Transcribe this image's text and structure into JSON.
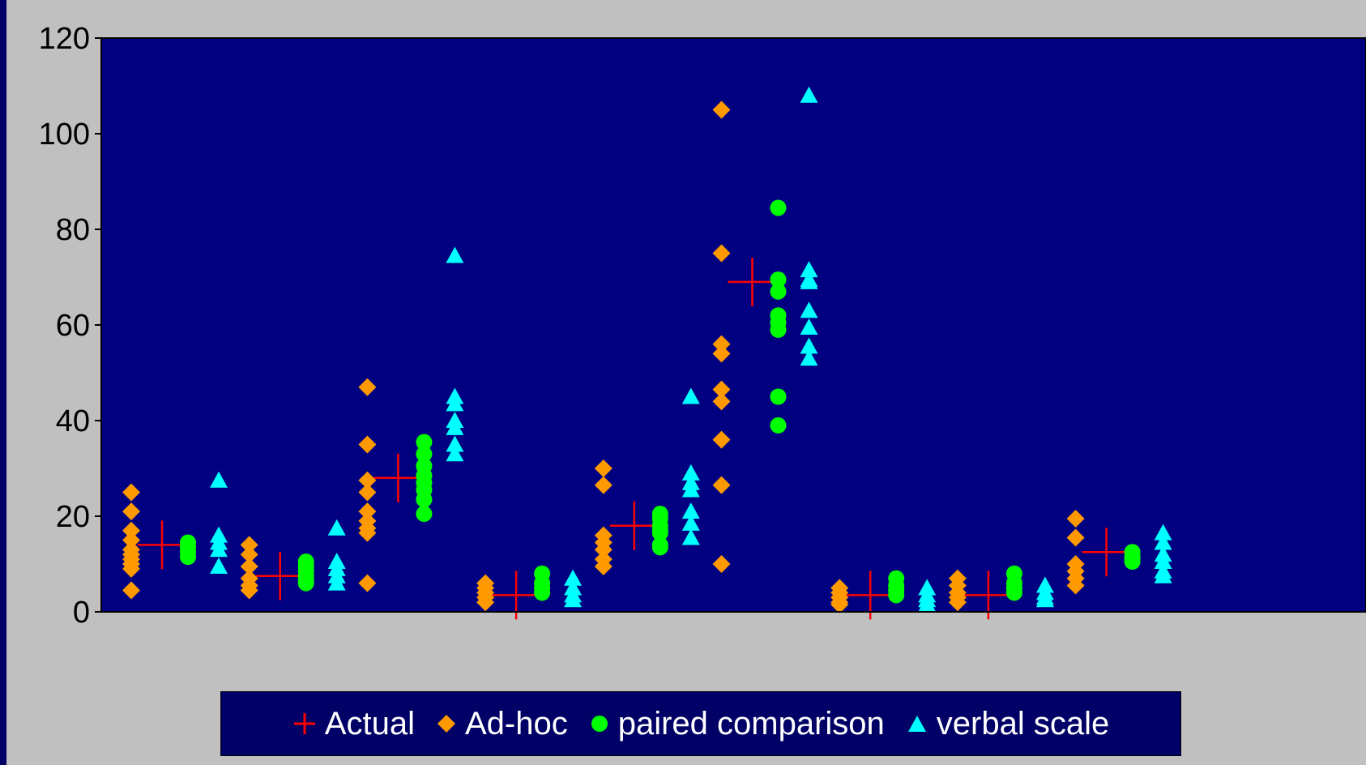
{
  "colors": {
    "page_background": "#000066",
    "chart_area": "#C0C0C0",
    "plot_background": "#000080",
    "legend_background": "#000066",
    "legend_text": "#FFFFFF",
    "axis_text": "#000000"
  },
  "chart_data": {
    "type": "scatter",
    "title": "",
    "xlabel": "",
    "ylabel": "",
    "ylim": [
      0,
      120
    ],
    "y_ticks": [
      0,
      20,
      40,
      60,
      80,
      100,
      120
    ],
    "y_tick_labels": [
      "0",
      "20",
      "40",
      "60",
      "80",
      "100",
      "120"
    ],
    "x_tick_labels": [],
    "grid": false,
    "legend_position": "bottom",
    "group_count": 10,
    "series": [
      {
        "name": "Actual",
        "marker": "cross",
        "color": "#FF0000",
        "points": [
          {
            "group": 1,
            "value": 14
          },
          {
            "group": 2,
            "value": 7.5
          },
          {
            "group": 3,
            "value": 28
          },
          {
            "group": 4,
            "value": 3.5
          },
          {
            "group": 5,
            "value": 18
          },
          {
            "group": 6,
            "value": 69
          },
          {
            "group": 7,
            "value": 3.5
          },
          {
            "group": 8,
            "value": 3.5
          },
          {
            "group": 9,
            "value": 12.5
          }
        ]
      },
      {
        "name": "Ad-hoc",
        "marker": "diamond",
        "color": "#FF9900",
        "points": [
          {
            "group": 1,
            "values": [
              25,
              21,
              17,
              15,
              13,
              12,
              11,
              10,
              9,
              4.5
            ]
          },
          {
            "group": 2,
            "values": [
              14,
              12,
              9.5,
              7,
              5.5,
              4.5
            ]
          },
          {
            "group": 3,
            "values": [
              47,
              35,
              27.5,
              25,
              21,
              19,
              17.5,
              16.5,
              6
            ]
          },
          {
            "group": 4,
            "values": [
              6,
              5,
              4,
              3,
              2
            ]
          },
          {
            "group": 5,
            "values": [
              30,
              26.5,
              16,
              14.5,
              13,
              11,
              9.5
            ]
          },
          {
            "group": 6,
            "values": [
              105,
              75,
              56,
              54,
              46.5,
              44,
              36,
              26.5,
              10
            ]
          },
          {
            "group": 7,
            "values": [
              5,
              4,
              3,
              2,
              1.5
            ]
          },
          {
            "group": 8,
            "values": [
              7,
              5.5,
              4,
              3,
              2
            ]
          },
          {
            "group": 9,
            "values": [
              19.5,
              15.5,
              10,
              8.5,
              7,
              5.5
            ]
          }
        ]
      },
      {
        "name": "paired comparison",
        "marker": "circle",
        "color": "#00FF00",
        "points": [
          {
            "group": 1,
            "values": [
              14.5,
              13.5,
              12.5,
              11.5
            ]
          },
          {
            "group": 2,
            "values": [
              10.5,
              9.5,
              8.5,
              7.5,
              6.5,
              6
            ]
          },
          {
            "group": 3,
            "values": [
              35.5,
              33,
              30.5,
              28.5,
              27,
              25.5,
              23.5,
              20.5
            ]
          },
          {
            "group": 4,
            "values": [
              8,
              6,
              5,
              4
            ]
          },
          {
            "group": 5,
            "values": [
              20.5,
              19.5,
              18,
              17,
              16.5,
              14,
              13.5
            ]
          },
          {
            "group": 6,
            "values": [
              84.5,
              69.5,
              67,
              62,
              60.5,
              59,
              45,
              39
            ]
          },
          {
            "group": 7,
            "values": [
              7,
              5.5,
              4.5,
              3.5
            ]
          },
          {
            "group": 8,
            "values": [
              8,
              6,
              5,
              4
            ]
          },
          {
            "group": 9,
            "values": [
              12.5,
              11.5,
              11,
              10.5
            ]
          }
        ]
      },
      {
        "name": "verbal scale",
        "marker": "triangle",
        "color": "#00FFFF",
        "points": [
          {
            "group": 1,
            "values": [
              27.5,
              16,
              14.5,
              13,
              9.5
            ]
          },
          {
            "group": 2,
            "values": [
              17.5,
              10.5,
              9,
              7.5,
              6
            ]
          },
          {
            "group": 3,
            "values": [
              74.5,
              45,
              43.5,
              40,
              38.5,
              35,
              33
            ]
          },
          {
            "group": 4,
            "values": [
              7,
              5,
              3.5,
              2.5
            ]
          },
          {
            "group": 5,
            "values": [
              45,
              29,
              27,
              25.5,
              21,
              18.5,
              15.5
            ]
          },
          {
            "group": 6,
            "values": [
              108,
              71.5,
              69.5,
              69,
              63,
              59.5,
              55.5,
              53
            ]
          },
          {
            "group": 7,
            "values": [
              5,
              3.5,
              2.5,
              1.5
            ]
          },
          {
            "group": 8,
            "values": [
              5.5,
              4,
              3,
              2.5
            ]
          },
          {
            "group": 9,
            "values": [
              16.5,
              14.5,
              12,
              10.5,
              8.5,
              7.5
            ]
          }
        ]
      }
    ]
  }
}
